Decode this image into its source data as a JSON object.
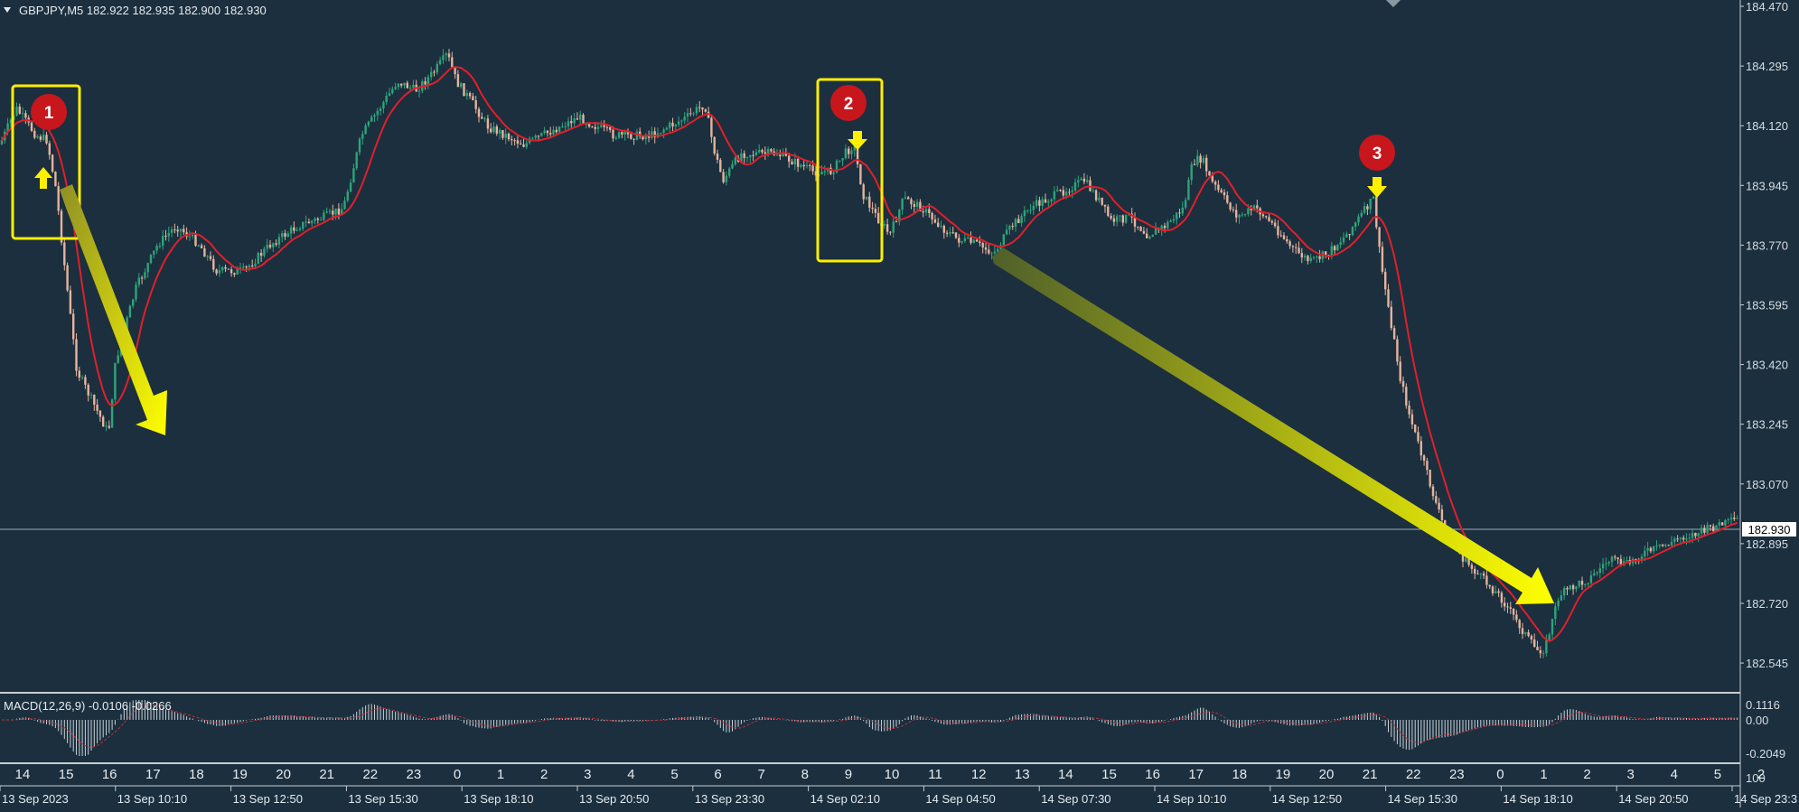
{
  "app": {
    "symbol_header": "GBPJPY,M5  182.922 182.935 182.900 182.930",
    "menu_icon": "triangle-down-icon"
  },
  "colors": {
    "background": "#1b2f3e",
    "bull_candle": "#2fa37a",
    "bear_candle": "#e7b39c",
    "moving_average": "#e0202a",
    "highlight": "#ffef00",
    "marker_fill": "#c8161d",
    "grid_text": "#d8dde2",
    "separator": "#cfd6dc"
  },
  "price_axis": {
    "labels": [
      "184.470",
      "184.295",
      "184.120",
      "183.945",
      "183.770",
      "183.595",
      "183.420",
      "183.245",
      "183.070",
      "182.895",
      "182.720",
      "182.545"
    ],
    "current_price": "182.930"
  },
  "macd": {
    "title": "MACD(12,26,9) -0.0106 -0.0266",
    "labels": [
      "0.1116",
      "0.00",
      "-0.2049"
    ]
  },
  "time_axis": {
    "hours": [
      "14",
      "15",
      "16",
      "17",
      "18",
      "19",
      "20",
      "21",
      "22",
      "23",
      "0",
      "1",
      "2",
      "3",
      "4",
      "5",
      "6",
      "7",
      "8",
      "9",
      "10",
      "11",
      "12",
      "13",
      "14",
      "15",
      "16",
      "17",
      "18",
      "19",
      "20",
      "21",
      "22",
      "23",
      "0",
      "1",
      "2",
      "3",
      "4",
      "5",
      "2"
    ],
    "dates": [
      "13 Sep 2023",
      "13 Sep 10:10",
      "13 Sep 12:50",
      "13 Sep 15:30",
      "13 Sep 18:10",
      "13 Sep 20:50",
      "13 Sep 23:30",
      "14 Sep 02:10",
      "14 Sep 04:50",
      "14 Sep 07:30",
      "14 Sep 10:10",
      "14 Sep 12:50",
      "14 Sep 15:30",
      "14 Sep 18:10",
      "14 Sep 20:50",
      "14 Sep 23:3"
    ],
    "corner_label": "100"
  },
  "annotations": {
    "markers": [
      "1",
      "2",
      "3"
    ]
  }
}
